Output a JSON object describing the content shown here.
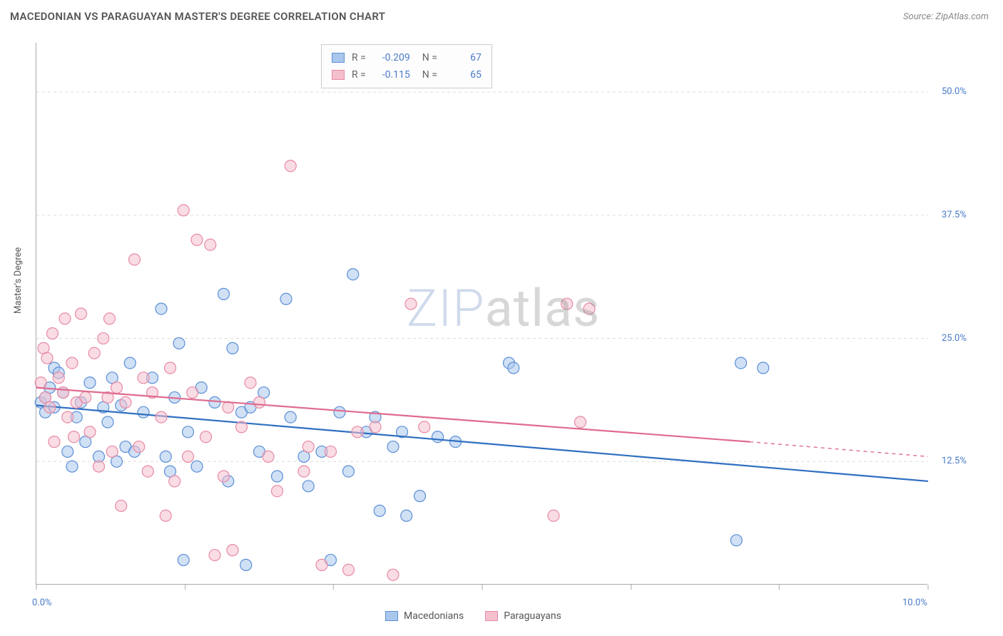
{
  "title": "MACEDONIAN VS PARAGUAYAN MASTER'S DEGREE CORRELATION CHART",
  "source": "Source: ZipAtlas.com",
  "watermark_zip": "ZIP",
  "watermark_atlas": "atlas",
  "chart": {
    "type": "scatter",
    "y_axis_title": "Master's Degree",
    "xlim": [
      0,
      10
    ],
    "ylim": [
      0,
      55
    ],
    "x_ticks": [
      0,
      1.67,
      3.33,
      5.0,
      6.67,
      8.33,
      10
    ],
    "x_tick_labels_shown": {
      "0": "0.0%",
      "10": "10.0%"
    },
    "y_gridlines": [
      12.5,
      25.0,
      37.5,
      50.0
    ],
    "y_labels": [
      "12.5%",
      "25.0%",
      "37.5%",
      "50.0%"
    ],
    "marker_radius": 8,
    "marker_opacity": 0.55,
    "line_width": 2.2,
    "grid_color": "#dddddd",
    "axis_color": "#aaaaaa",
    "label_color": "#4a7bc8",
    "background_color": "#ffffff",
    "series": [
      {
        "name": "Macedonians",
        "color_fill": "#a9c6ec",
        "color_stroke": "#5b8fd6",
        "line_color": "#2f6fc1",
        "R": "-0.209",
        "N": "67",
        "trend": {
          "x1": 0,
          "y1": 18.2,
          "x2": 10,
          "y2": 10.5
        },
        "points": [
          [
            0.05,
            18.5
          ],
          [
            0.1,
            19.0
          ],
          [
            0.1,
            17.5
          ],
          [
            0.15,
            20.0
          ],
          [
            0.2,
            18.0
          ],
          [
            0.2,
            22.0
          ],
          [
            0.25,
            21.5
          ],
          [
            0.3,
            19.5
          ],
          [
            0.35,
            13.5
          ],
          [
            0.4,
            12.0
          ],
          [
            0.45,
            17.0
          ],
          [
            0.5,
            18.5
          ],
          [
            0.55,
            14.5
          ],
          [
            0.6,
            20.5
          ],
          [
            0.7,
            13.0
          ],
          [
            0.75,
            18.0
          ],
          [
            0.8,
            16.5
          ],
          [
            0.85,
            21.0
          ],
          [
            0.9,
            12.5
          ],
          [
            0.95,
            18.2
          ],
          [
            1.0,
            14.0
          ],
          [
            1.05,
            22.5
          ],
          [
            1.1,
            13.5
          ],
          [
            1.2,
            17.5
          ],
          [
            1.3,
            21.0
          ],
          [
            1.4,
            28.0
          ],
          [
            1.45,
            13.0
          ],
          [
            1.5,
            11.5
          ],
          [
            1.55,
            19.0
          ],
          [
            1.6,
            24.5
          ],
          [
            1.65,
            2.5
          ],
          [
            1.7,
            15.5
          ],
          [
            1.8,
            12.0
          ],
          [
            1.85,
            20.0
          ],
          [
            2.0,
            18.5
          ],
          [
            2.1,
            29.5
          ],
          [
            2.15,
            10.5
          ],
          [
            2.2,
            24.0
          ],
          [
            2.3,
            17.5
          ],
          [
            2.35,
            2.0
          ],
          [
            2.4,
            18.0
          ],
          [
            2.5,
            13.5
          ],
          [
            2.55,
            19.5
          ],
          [
            2.7,
            11.0
          ],
          [
            2.8,
            29.0
          ],
          [
            2.85,
            17.0
          ],
          [
            3.0,
            13.0
          ],
          [
            3.05,
            10.0
          ],
          [
            3.2,
            13.5
          ],
          [
            3.3,
            2.5
          ],
          [
            3.4,
            17.5
          ],
          [
            3.5,
            11.5
          ],
          [
            3.55,
            31.5
          ],
          [
            3.7,
            15.5
          ],
          [
            3.8,
            17.0
          ],
          [
            3.85,
            7.5
          ],
          [
            4.0,
            14.0
          ],
          [
            4.1,
            15.5
          ],
          [
            4.15,
            7.0
          ],
          [
            4.3,
            9.0
          ],
          [
            4.5,
            15.0
          ],
          [
            4.7,
            14.5
          ],
          [
            5.3,
            22.5
          ],
          [
            5.35,
            22.0
          ],
          [
            7.9,
            22.5
          ],
          [
            8.15,
            22.0
          ],
          [
            7.85,
            4.5
          ]
        ]
      },
      {
        "name": "Paraguayans",
        "color_fill": "#f4c0cd",
        "color_stroke": "#e88aa4",
        "line_color": "#e06b8f",
        "R": "-0.115",
        "N": "65",
        "trend": {
          "x1": 0,
          "y1": 20.0,
          "x2": 8.0,
          "y2": 14.5
        },
        "trend_dash_continue": {
          "x1": 8.0,
          "y1": 14.5,
          "x2": 10,
          "y2": 13.0
        },
        "points": [
          [
            0.05,
            20.5
          ],
          [
            0.08,
            24.0
          ],
          [
            0.1,
            19.0
          ],
          [
            0.12,
            23.0
          ],
          [
            0.15,
            18.0
          ],
          [
            0.18,
            25.5
          ],
          [
            0.2,
            14.5
          ],
          [
            0.25,
            21.0
          ],
          [
            0.3,
            19.5
          ],
          [
            0.32,
            27.0
          ],
          [
            0.35,
            17.0
          ],
          [
            0.4,
            22.5
          ],
          [
            0.42,
            15.0
          ],
          [
            0.45,
            18.5
          ],
          [
            0.5,
            27.5
          ],
          [
            0.55,
            19.0
          ],
          [
            0.6,
            15.5
          ],
          [
            0.65,
            23.5
          ],
          [
            0.7,
            12.0
          ],
          [
            0.75,
            25.0
          ],
          [
            0.8,
            19.0
          ],
          [
            0.82,
            27.0
          ],
          [
            0.85,
            13.5
          ],
          [
            0.9,
            20.0
          ],
          [
            0.95,
            8.0
          ],
          [
            1.0,
            18.5
          ],
          [
            1.1,
            33.0
          ],
          [
            1.15,
            14.0
          ],
          [
            1.2,
            21.0
          ],
          [
            1.25,
            11.5
          ],
          [
            1.3,
            19.5
          ],
          [
            1.4,
            17.0
          ],
          [
            1.45,
            7.0
          ],
          [
            1.5,
            22.0
          ],
          [
            1.55,
            10.5
          ],
          [
            1.65,
            38.0
          ],
          [
            1.7,
            13.0
          ],
          [
            1.75,
            19.5
          ],
          [
            1.8,
            35.0
          ],
          [
            1.9,
            15.0
          ],
          [
            1.95,
            34.5
          ],
          [
            2.0,
            3.0
          ],
          [
            2.1,
            11.0
          ],
          [
            2.15,
            18.0
          ],
          [
            2.2,
            3.5
          ],
          [
            2.3,
            16.0
          ],
          [
            2.4,
            20.5
          ],
          [
            2.5,
            18.5
          ],
          [
            2.6,
            13.0
          ],
          [
            2.7,
            9.5
          ],
          [
            2.85,
            42.5
          ],
          [
            3.0,
            11.5
          ],
          [
            3.05,
            14.0
          ],
          [
            3.2,
            2.0
          ],
          [
            3.3,
            13.5
          ],
          [
            3.5,
            1.5
          ],
          [
            3.6,
            15.5
          ],
          [
            3.8,
            16.0
          ],
          [
            4.0,
            1.0
          ],
          [
            4.2,
            28.5
          ],
          [
            4.35,
            16.0
          ],
          [
            5.8,
            7.0
          ],
          [
            5.95,
            28.5
          ],
          [
            6.1,
            16.5
          ],
          [
            6.2,
            28.0
          ]
        ]
      }
    ]
  }
}
